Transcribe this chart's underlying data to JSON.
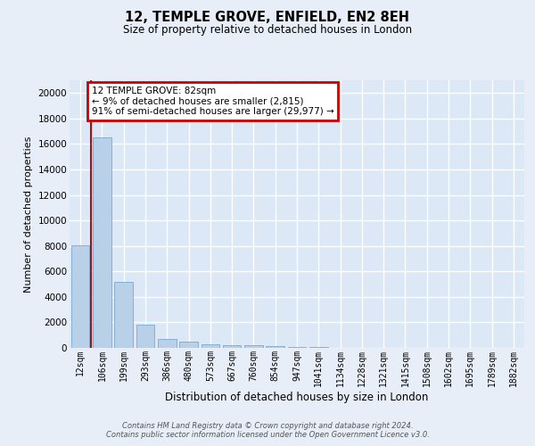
{
  "title": "12, TEMPLE GROVE, ENFIELD, EN2 8EH",
  "subtitle": "Size of property relative to detached houses in London",
  "xlabel": "Distribution of detached houses by size in London",
  "ylabel": "Number of detached properties",
  "categories": [
    "12sqm",
    "106sqm",
    "199sqm",
    "293sqm",
    "386sqm",
    "480sqm",
    "573sqm",
    "667sqm",
    "760sqm",
    "854sqm",
    "947sqm",
    "1041sqm",
    "1134sqm",
    "1228sqm",
    "1321sqm",
    "1415sqm",
    "1508sqm",
    "1602sqm",
    "1695sqm",
    "1789sqm",
    "1882sqm"
  ],
  "values": [
    8050,
    16500,
    5200,
    1800,
    680,
    480,
    290,
    200,
    180,
    140,
    60,
    50,
    30,
    20,
    15,
    10,
    8,
    5,
    3,
    2,
    1
  ],
  "bar_color": "#b8d0e8",
  "bar_edge_color": "#6a9fc8",
  "annotation_title": "12 TEMPLE GROVE: 82sqm",
  "annotation_line1": "← 9% of detached houses are smaller (2,815)",
  "annotation_line2": "91% of semi-detached houses are larger (29,977) →",
  "annotation_box_facecolor": "#ffffff",
  "annotation_box_edgecolor": "#cc0000",
  "vline_color": "#cc0000",
  "ylim_max": 21000,
  "fig_facecolor": "#e8eef8",
  "plot_bg_color": "#dce8f5",
  "grid_color": "#ffffff",
  "footer_line1": "Contains HM Land Registry data © Crown copyright and database right 2024.",
  "footer_line2": "Contains public sector information licensed under the Open Government Licence v3.0."
}
